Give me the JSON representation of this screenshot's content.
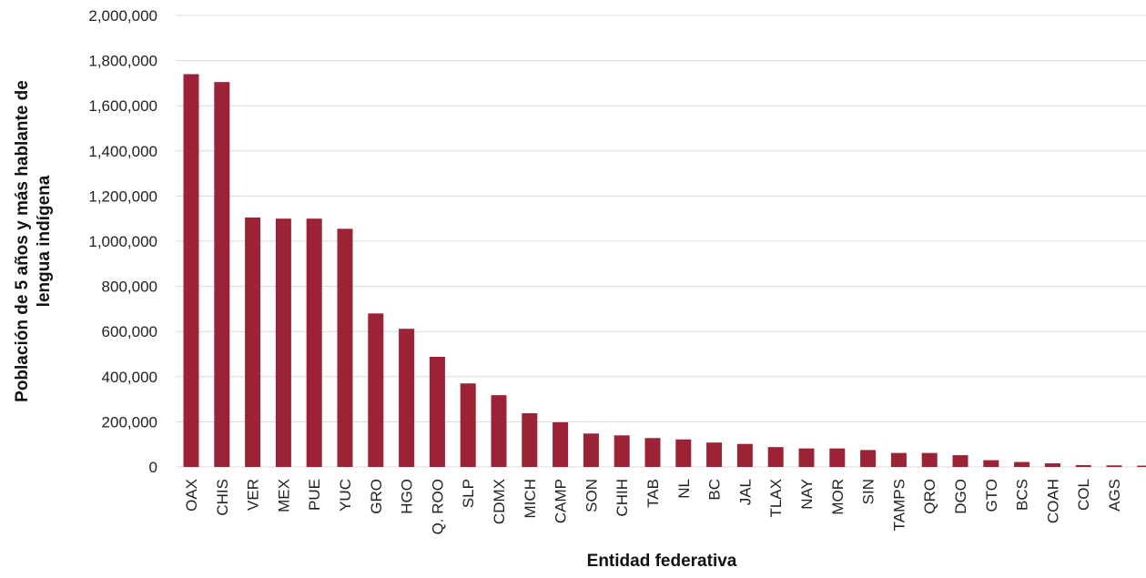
{
  "chart_data": {
    "type": "bar",
    "title": "",
    "xlabel": "Entidad federativa",
    "ylabel_lines": [
      "Población de 5 años y más hablante de",
      "lengua indígena"
    ],
    "ylim": [
      0,
      2000000
    ],
    "yticks": [
      0,
      200000,
      400000,
      600000,
      800000,
      1000000,
      1200000,
      1400000,
      1600000,
      1800000,
      2000000
    ],
    "ytick_labels": [
      "0",
      "200,000",
      "400,000",
      "600,000",
      "800,000",
      "1,000,000",
      "1,200,000",
      "1,400,000",
      "1,600,000",
      "1,800,000",
      "2,000,000"
    ],
    "grid": true,
    "legend": "none",
    "bar_color": "#9b2335",
    "grid_color": "#d9d9d9",
    "categories": [
      "OAX",
      "CHIS",
      "VER",
      "MEX",
      "PUE",
      "YUC",
      "GRO",
      "HGO",
      "Q. ROO",
      "SLP",
      "CDMX",
      "MICH",
      "CAMP",
      "SON",
      "CHIH",
      "TAB",
      "NL",
      "BC",
      "JAL",
      "TLAX",
      "NAY",
      "MOR",
      "SIN",
      "TAMPS",
      "QRO",
      "DGO",
      "GTO",
      "BCS",
      "COAH",
      "COL",
      "AGS",
      ""
    ],
    "values": [
      1740000,
      1705000,
      1105000,
      1100000,
      1100000,
      1055000,
      680000,
      612000,
      488000,
      370000,
      318000,
      238000,
      198000,
      148000,
      140000,
      128000,
      122000,
      108000,
      102000,
      88000,
      82000,
      82000,
      75000,
      62000,
      62000,
      52000,
      30000,
      22000,
      16000,
      8000,
      7000,
      6000
    ]
  }
}
